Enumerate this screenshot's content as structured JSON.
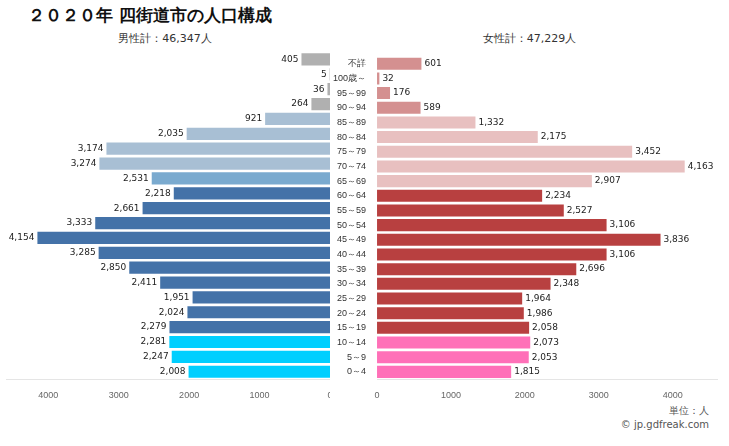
{
  "chart_data": {
    "type": "bar",
    "orientation": "horizontal",
    "title": "２０２０年 四街道市の人口構成",
    "annotations": [
      "男性計：46,347人",
      "女性計：47,229人",
      "単位：人",
      "© jp.gdfreak.com"
    ],
    "categories": [
      "不詳",
      "100歳～",
      "95～99",
      "90～94",
      "85～89",
      "80～84",
      "75～79",
      "70～74",
      "65～69",
      "60～64",
      "55～59",
      "50～54",
      "45～49",
      "40～44",
      "35～39",
      "30～34",
      "25～29",
      "20～24",
      "15～19",
      "10～14",
      "5～9",
      "0～4"
    ],
    "series": [
      {
        "values": [
          405,
          5,
          36,
          264,
          921,
          2035,
          3174,
          3274,
          2531,
          2218,
          2661,
          3333,
          4154,
          3285,
          2850,
          2411,
          1951,
          2024,
          2279,
          2281,
          2247,
          2008
        ],
        "value_labels": [
          "405",
          "5",
          "36",
          "264",
          "921",
          "2,035",
          "3,174",
          "3,274",
          "2,531",
          "2,218",
          "2,661",
          "3,333",
          "4,154",
          "3,285",
          "2,850",
          "2,411",
          "1,951",
          "2,024",
          "2,279",
          "2,281",
          "2,247",
          "2,008"
        ],
        "colors": [
          "#b0b0b0",
          "#b0b0b0",
          "#b0b0b0",
          "#b0b0b0",
          "#a8bfd4",
          "#a8bfd4",
          "#a8bfd4",
          "#a8bfd4",
          "#7aaacf",
          "#4472a8",
          "#4472a8",
          "#4472a8",
          "#4472a8",
          "#4472a8",
          "#4472a8",
          "#4472a8",
          "#4472a8",
          "#4472a8",
          "#4472a8",
          "#00cfff",
          "#00cfff",
          "#00cfff"
        ]
      },
      {
        "values": [
          601,
          32,
          176,
          589,
          1332,
          2175,
          3452,
          4163,
          2907,
          2234,
          2527,
          3106,
          3836,
          3106,
          2696,
          2348,
          1964,
          1986,
          2058,
          2073,
          2053,
          1815
        ],
        "value_labels": [
          "601",
          "32",
          "176",
          "589",
          "1,332",
          "2,175",
          "3,452",
          "4,163",
          "2,907",
          "2,234",
          "2,527",
          "3,106",
          "3,836",
          "3,106",
          "2,696",
          "2,348",
          "1,964",
          "1,986",
          "2,058",
          "2,073",
          "2,053",
          "1,815"
        ],
        "colors": [
          "#d49090",
          "#d49090",
          "#d49090",
          "#d49090",
          "#e8c0c0",
          "#e8c0c0",
          "#e8c0c0",
          "#e8c0c0",
          "#e8c0c0",
          "#b84040",
          "#b84040",
          "#b84040",
          "#b84040",
          "#b84040",
          "#b84040",
          "#b84040",
          "#b84040",
          "#b84040",
          "#b84040",
          "#ff70b8",
          "#ff70b8",
          "#ff70b8"
        ]
      }
    ],
    "xlim": [
      0,
      4600
    ],
    "xticks": [
      0,
      1000,
      2000,
      3000,
      4000
    ],
    "data_labels": true,
    "grid": false
  }
}
